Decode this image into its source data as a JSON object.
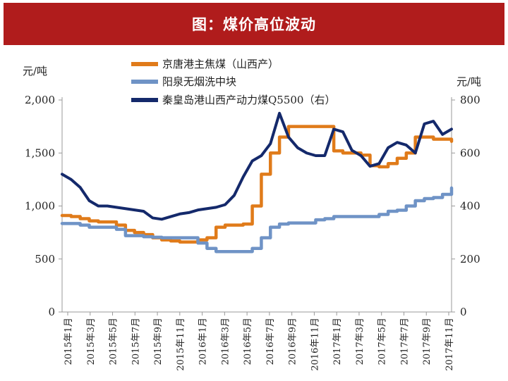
{
  "header": {
    "title": "图：煤价高位波动"
  },
  "chart_data": {
    "type": "line",
    "title": "图：煤价高位波动",
    "y_left": {
      "unit": "元/吨",
      "min": 0,
      "max": 2000,
      "ticks": [
        "0",
        "500",
        "1,000",
        "1,500",
        "2,000"
      ]
    },
    "y_right": {
      "unit": "元/吨",
      "min": 0,
      "max": 800,
      "ticks": [
        "0",
        "200",
        "400",
        "600",
        "800"
      ]
    },
    "x_ticks": [
      "2015年1月",
      "2015年3月",
      "2015年5月",
      "2015年7月",
      "2015年9月",
      "2015年11月",
      "2016年1月",
      "2016年3月",
      "2016年5月",
      "2016年7月",
      "2016年9月",
      "2016年11月",
      "2017年1月",
      "2017年3月",
      "2017年5月",
      "2017年7月",
      "2017年9月",
      "2017年11月"
    ],
    "series": [
      {
        "name": "京唐港主焦煤（山西产）",
        "axis": "left",
        "color": "#e07b1a",
        "points": [
          [
            0,
            910
          ],
          [
            1,
            900
          ],
          [
            2,
            880
          ],
          [
            3,
            860
          ],
          [
            4,
            850
          ],
          [
            5,
            850
          ],
          [
            6,
            820
          ],
          [
            7,
            770
          ],
          [
            8,
            750
          ],
          [
            9,
            730
          ],
          [
            10,
            700
          ],
          [
            11,
            680
          ],
          [
            12,
            670
          ],
          [
            13,
            660
          ],
          [
            14,
            660
          ],
          [
            15,
            680
          ],
          [
            16,
            700
          ],
          [
            17,
            800
          ],
          [
            18,
            820
          ],
          [
            19,
            820
          ],
          [
            20,
            830
          ],
          [
            21,
            1000
          ],
          [
            22,
            1300
          ],
          [
            23,
            1500
          ],
          [
            24,
            1650
          ],
          [
            25,
            1750
          ],
          [
            26,
            1750
          ],
          [
            27,
            1750
          ],
          [
            28,
            1750
          ],
          [
            29,
            1750
          ],
          [
            30,
            1520
          ],
          [
            31,
            1500
          ],
          [
            32,
            1500
          ],
          [
            33,
            1480
          ],
          [
            34,
            1380
          ],
          [
            35,
            1370
          ],
          [
            36,
            1400
          ],
          [
            37,
            1450
          ],
          [
            38,
            1500
          ],
          [
            39,
            1650
          ],
          [
            40,
            1650
          ],
          [
            41,
            1630
          ],
          [
            42,
            1630
          ],
          [
            43,
            1610
          ]
        ]
      },
      {
        "name": "阳泉无烟洗中块",
        "axis": "left",
        "color": "#6f93c6",
        "points": [
          [
            0,
            835
          ],
          [
            1,
            835
          ],
          [
            2,
            820
          ],
          [
            3,
            800
          ],
          [
            4,
            800
          ],
          [
            5,
            800
          ],
          [
            6,
            780
          ],
          [
            7,
            720
          ],
          [
            8,
            720
          ],
          [
            9,
            710
          ],
          [
            10,
            705
          ],
          [
            11,
            700
          ],
          [
            12,
            700
          ],
          [
            13,
            700
          ],
          [
            14,
            700
          ],
          [
            15,
            650
          ],
          [
            16,
            600
          ],
          [
            17,
            570
          ],
          [
            18,
            570
          ],
          [
            19,
            570
          ],
          [
            20,
            570
          ],
          [
            21,
            600
          ],
          [
            22,
            700
          ],
          [
            23,
            800
          ],
          [
            24,
            830
          ],
          [
            25,
            840
          ],
          [
            26,
            840
          ],
          [
            27,
            840
          ],
          [
            28,
            870
          ],
          [
            29,
            880
          ],
          [
            30,
            900
          ],
          [
            31,
            900
          ],
          [
            32,
            900
          ],
          [
            33,
            900
          ],
          [
            34,
            900
          ],
          [
            35,
            920
          ],
          [
            36,
            950
          ],
          [
            37,
            960
          ],
          [
            38,
            1000
          ],
          [
            39,
            1050
          ],
          [
            40,
            1070
          ],
          [
            41,
            1080
          ],
          [
            42,
            1110
          ],
          [
            43,
            1170
          ]
        ]
      },
      {
        "name": "秦皇岛港山西产动力煤Q5500（右）",
        "axis": "right",
        "color": "#14296b",
        "points": [
          [
            0,
            520
          ],
          [
            1,
            500
          ],
          [
            2,
            470
          ],
          [
            3,
            420
          ],
          [
            4,
            400
          ],
          [
            5,
            400
          ],
          [
            6,
            395
          ],
          [
            7,
            390
          ],
          [
            8,
            385
          ],
          [
            9,
            380
          ],
          [
            10,
            355
          ],
          [
            11,
            350
          ],
          [
            12,
            360
          ],
          [
            13,
            370
          ],
          [
            14,
            375
          ],
          [
            15,
            385
          ],
          [
            16,
            390
          ],
          [
            17,
            395
          ],
          [
            18,
            405
          ],
          [
            19,
            440
          ],
          [
            20,
            510
          ],
          [
            21,
            570
          ],
          [
            22,
            590
          ],
          [
            23,
            635
          ],
          [
            24,
            750
          ],
          [
            25,
            660
          ],
          [
            26,
            620
          ],
          [
            27,
            600
          ],
          [
            28,
            590
          ],
          [
            29,
            590
          ],
          [
            30,
            690
          ],
          [
            31,
            680
          ],
          [
            32,
            610
          ],
          [
            33,
            590
          ],
          [
            34,
            550
          ],
          [
            35,
            560
          ],
          [
            36,
            620
          ],
          [
            37,
            640
          ],
          [
            38,
            630
          ],
          [
            39,
            600
          ],
          [
            40,
            710
          ],
          [
            41,
            720
          ],
          [
            42,
            670
          ],
          [
            43,
            690
          ]
        ]
      }
    ]
  }
}
